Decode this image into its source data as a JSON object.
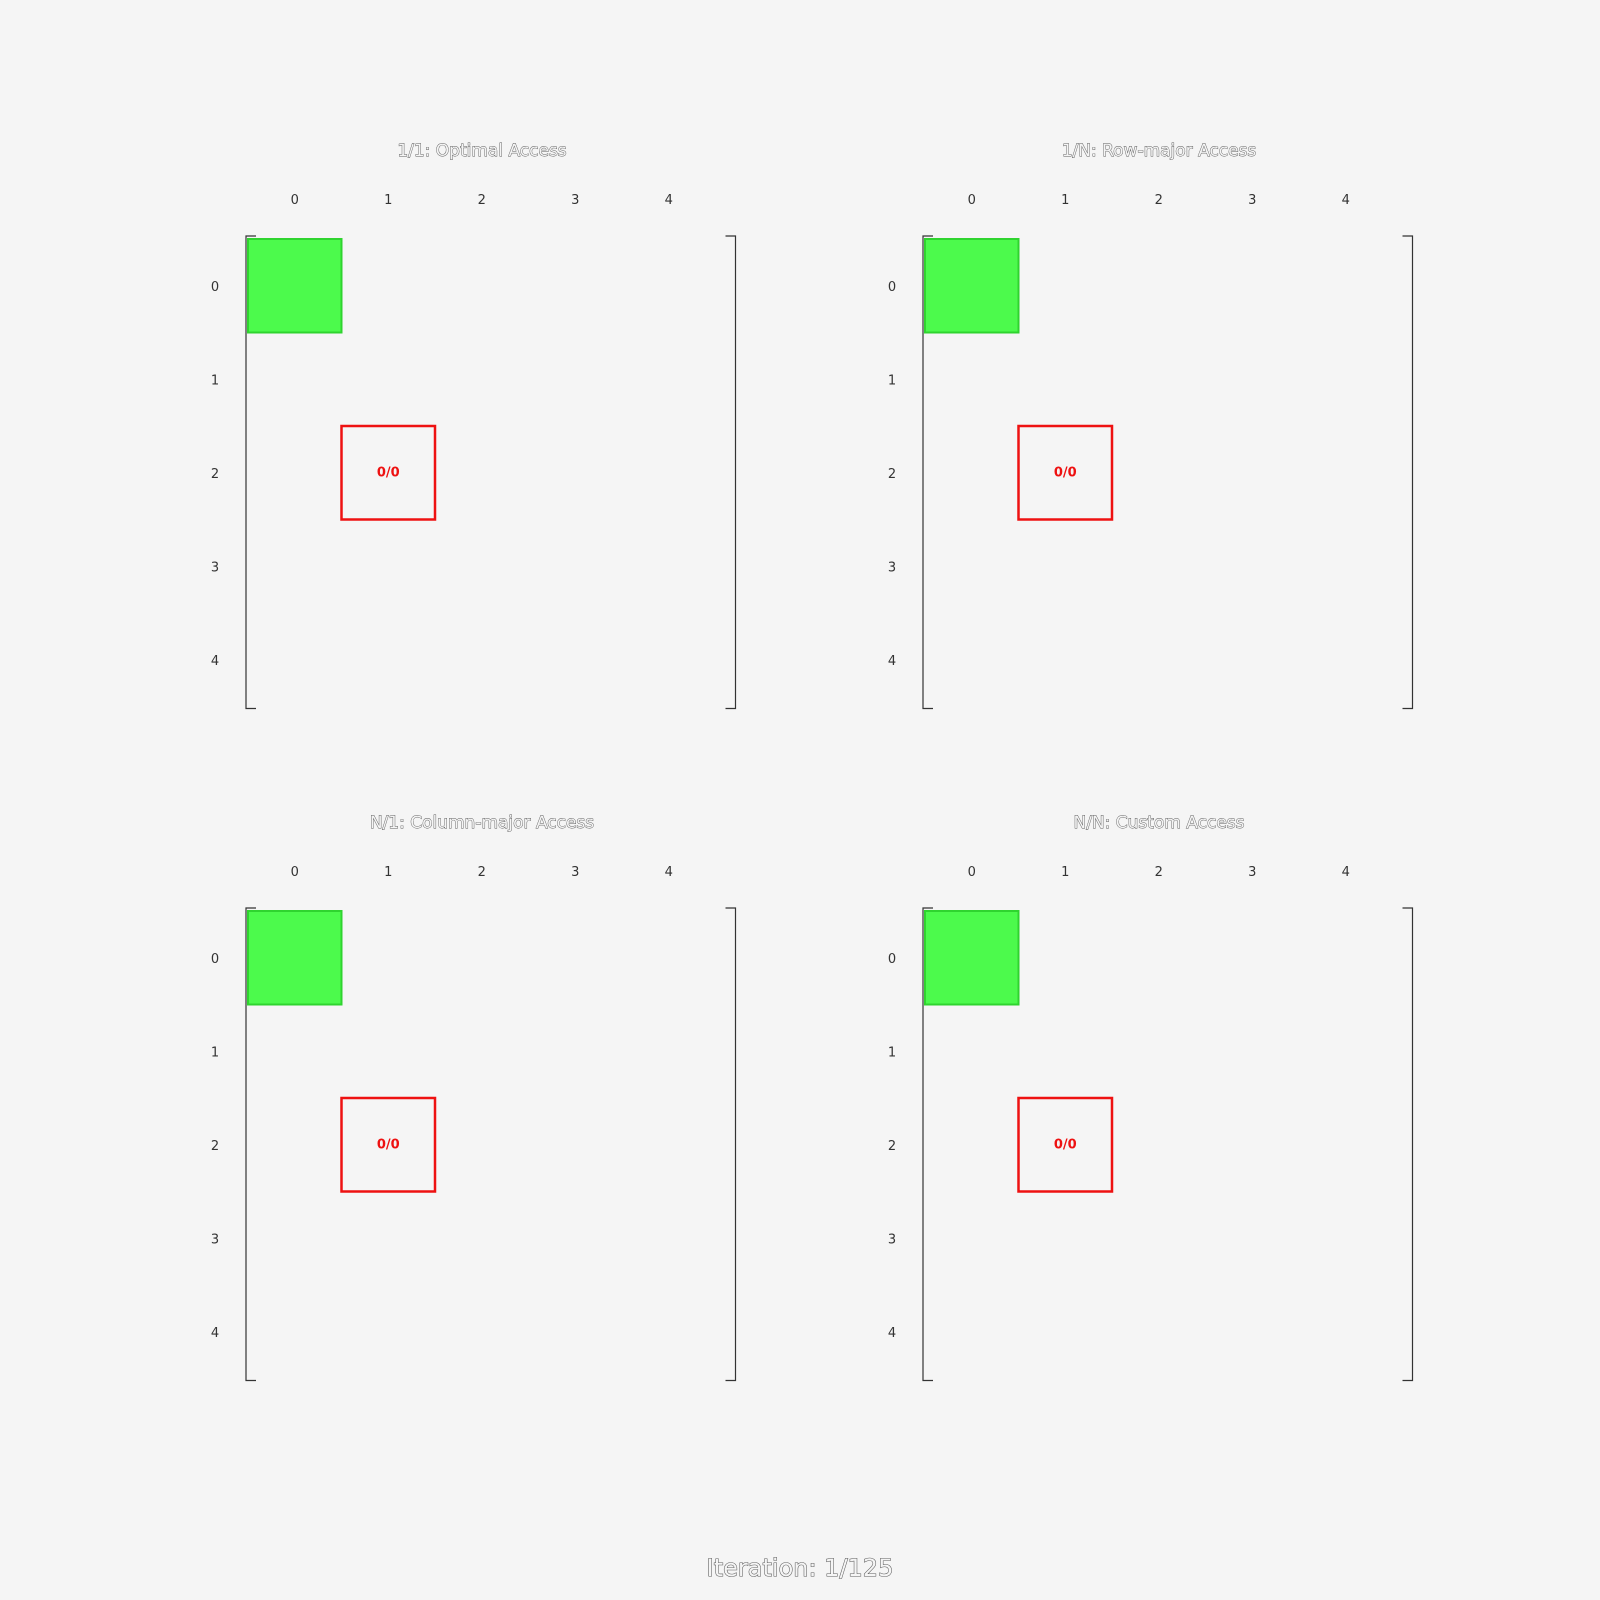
{
  "panels": [
    {
      "title": "1/1: Optimal Access",
      "col_labels": [
        "0",
        "1",
        "2",
        "3",
        "4"
      ],
      "row_labels": [
        "0",
        "1",
        "2",
        "3",
        "4"
      ],
      "green_cell": {
        "row": 0,
        "col": 0
      },
      "red_cell": {
        "row": 2,
        "col": 1,
        "label": "0/0"
      }
    },
    {
      "title": "1/N: Row-major Access",
      "col_labels": [
        "0",
        "1",
        "2",
        "3",
        "4"
      ],
      "row_labels": [
        "0",
        "1",
        "2",
        "3",
        "4"
      ],
      "green_cell": {
        "row": 0,
        "col": 0
      },
      "red_cell": {
        "row": 2,
        "col": 1,
        "label": "0/0"
      }
    },
    {
      "title": "N/1: Column-major Access",
      "col_labels": [
        "0",
        "1",
        "2",
        "3",
        "4"
      ],
      "row_labels": [
        "0",
        "1",
        "2",
        "3",
        "4"
      ],
      "green_cell": {
        "row": 0,
        "col": 0
      },
      "red_cell": {
        "row": 2,
        "col": 1,
        "label": "0/0"
      }
    },
    {
      "title": "N/N: Custom Access",
      "col_labels": [
        "0",
        "1",
        "2",
        "3",
        "4"
      ],
      "row_labels": [
        "0",
        "1",
        "2",
        "3",
        "4"
      ],
      "green_cell": {
        "row": 0,
        "col": 0
      },
      "red_cell": {
        "row": 2,
        "col": 1,
        "label": "0/0"
      }
    }
  ],
  "footer": "Iteration: 1/125",
  "colors": {
    "background": "#f5f5f5",
    "green": "#4cfa4c",
    "red": "#ee1111"
  }
}
